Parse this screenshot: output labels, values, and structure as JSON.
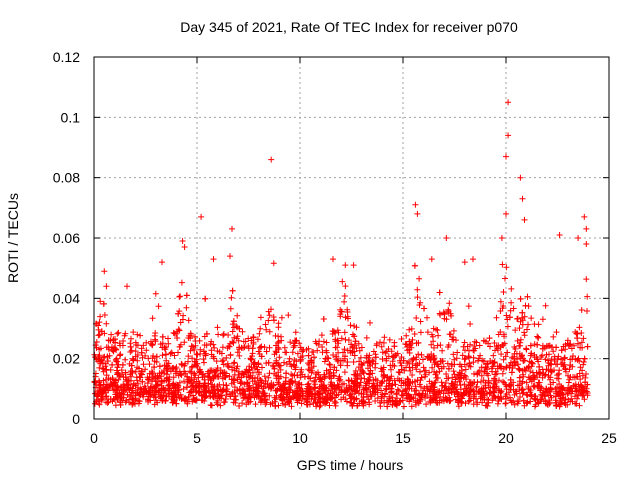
{
  "chart_data": {
    "type": "scatter",
    "title": "Day 345 of 2021, Rate Of TEC Index for receiver p070",
    "xlabel": "GPS time / hours",
    "ylabel": "ROTI / TECUs",
    "xlim": [
      0,
      25
    ],
    "ylim": [
      0,
      0.12
    ],
    "x_ticks": [
      0,
      5,
      10,
      15,
      20,
      25
    ],
    "x_tick_labels": [
      "0",
      "5",
      "10",
      "15",
      "20",
      "25"
    ],
    "y_ticks": [
      0,
      0.02,
      0.04,
      0.06,
      0.08,
      0.1,
      0.12
    ],
    "y_tick_labels": [
      "0",
      "0.02",
      "0.04",
      "0.06",
      "0.08",
      "0.1",
      "0.12"
    ],
    "grid": true,
    "marker": "plus",
    "color": "#ff0000",
    "series": [
      {
        "name": "ROTI",
        "note": "dense cloud of approx. 0.003–0.03 TECU between 0 and 24 h (generated procedurally); notable points listed below",
        "points": [
          [
            0.2,
            0.031
          ],
          [
            0.3,
            0.039
          ],
          [
            0.5,
            0.049
          ],
          [
            0.6,
            0.044
          ],
          [
            1.6,
            0.044
          ],
          [
            3.3,
            0.052
          ],
          [
            4.3,
            0.059
          ],
          [
            4.4,
            0.057
          ],
          [
            5.2,
            0.067
          ],
          [
            5.8,
            0.053
          ],
          [
            6.6,
            0.054
          ],
          [
            6.7,
            0.063
          ],
          [
            8.6,
            0.086
          ],
          [
            11.6,
            0.053
          ],
          [
            12.2,
            0.051
          ],
          [
            12.6,
            0.051
          ],
          [
            15.6,
            0.071
          ],
          [
            15.7,
            0.068
          ],
          [
            16.4,
            0.053
          ],
          [
            17.1,
            0.06
          ],
          [
            18.0,
            0.052
          ],
          [
            18.4,
            0.053
          ],
          [
            19.8,
            0.06
          ],
          [
            20.0,
            0.068
          ],
          [
            20.0,
            0.087
          ],
          [
            20.1,
            0.094
          ],
          [
            20.1,
            0.105
          ],
          [
            20.7,
            0.08
          ],
          [
            20.8,
            0.073
          ],
          [
            20.9,
            0.066
          ],
          [
            22.6,
            0.061
          ],
          [
            23.5,
            0.06
          ],
          [
            23.8,
            0.067
          ],
          [
            23.9,
            0.063
          ],
          [
            23.9,
            0.058
          ]
        ]
      }
    ]
  }
}
